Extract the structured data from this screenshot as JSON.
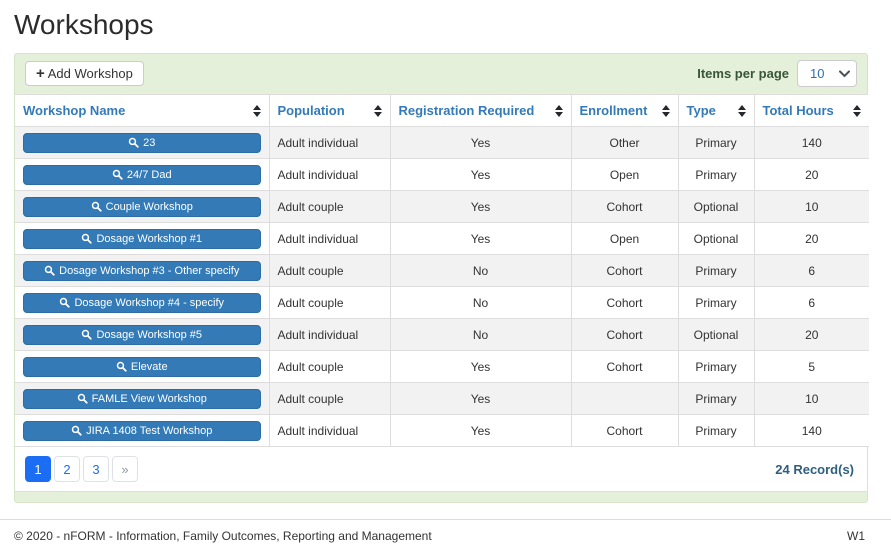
{
  "page": {
    "title": "Workshops"
  },
  "toolbar": {
    "add_button_label": "Add Workshop",
    "add_icon": "plus-icon",
    "items_per_page_label": "Items per page",
    "items_per_page_value": "10"
  },
  "table": {
    "columns": [
      {
        "label": "Workshop Name"
      },
      {
        "label": "Population"
      },
      {
        "label": "Registration Required"
      },
      {
        "label": "Enrollment"
      },
      {
        "label": "Type"
      },
      {
        "label": "Total Hours"
      }
    ],
    "rows": [
      {
        "name": "23",
        "population": "Adult individual",
        "registration_required": "Yes",
        "enrollment": "Other",
        "type": "Primary",
        "total_hours": "140"
      },
      {
        "name": "24/7 Dad",
        "population": "Adult individual",
        "registration_required": "Yes",
        "enrollment": "Open",
        "type": "Primary",
        "total_hours": "20"
      },
      {
        "name": "Couple Workshop",
        "population": "Adult couple",
        "registration_required": "Yes",
        "enrollment": "Cohort",
        "type": "Optional",
        "total_hours": "10"
      },
      {
        "name": "Dosage Workshop #1",
        "population": "Adult individual",
        "registration_required": "Yes",
        "enrollment": "Open",
        "type": "Optional",
        "total_hours": "20"
      },
      {
        "name": "Dosage Workshop #3 - Other specify",
        "population": "Adult couple",
        "registration_required": "No",
        "enrollment": "Cohort",
        "type": "Primary",
        "total_hours": "6"
      },
      {
        "name": "Dosage Workshop #4 - specify",
        "population": "Adult couple",
        "registration_required": "No",
        "enrollment": "Cohort",
        "type": "Primary",
        "total_hours": "6"
      },
      {
        "name": "Dosage Workshop #5",
        "population": "Adult individual",
        "registration_required": "No",
        "enrollment": "Cohort",
        "type": "Optional",
        "total_hours": "20"
      },
      {
        "name": "Elevate",
        "population": "Adult couple",
        "registration_required": "Yes",
        "enrollment": "Cohort",
        "type": "Primary",
        "total_hours": "5"
      },
      {
        "name": "FAMLE View Workshop",
        "population": "Adult couple",
        "registration_required": "Yes",
        "enrollment": "",
        "type": "Primary",
        "total_hours": "10"
      },
      {
        "name": "JIRA 1408 Test Workshop",
        "population": "Adult individual",
        "registration_required": "Yes",
        "enrollment": "Cohort",
        "type": "Primary",
        "total_hours": "140"
      }
    ]
  },
  "pagination": {
    "pages": [
      "1",
      "2",
      "3"
    ],
    "active": "1",
    "next_label": "»",
    "records_label": "24 Record(s)"
  },
  "footer": {
    "copyright": "© 2020 - nFORM - Information, Family Outcomes, Reporting and Management",
    "version": "W1"
  },
  "colors": {
    "accent_blue": "#337ab7",
    "pagination_active_blue": "#1b6ef3",
    "panel_green": "#e4f0da",
    "records_text": "#2e5f7f",
    "stripe_gray": "#f2f2f2"
  }
}
